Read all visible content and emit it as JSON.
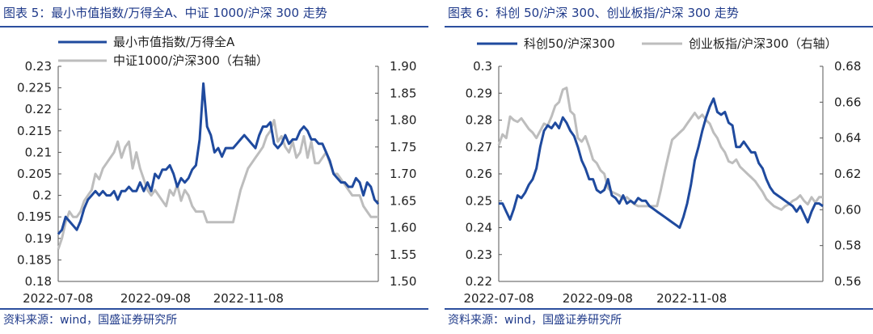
{
  "chart_data": [
    {
      "type": "line",
      "title": "图表 5：最小市值指数/万得全A、中证 1000/沪深 300 走势",
      "source": "资料来源：wind，国盛证券研究所",
      "x_ticks": [
        "2022-07-08",
        "2022-09-08",
        "2022-11-08"
      ],
      "y_left": {
        "min": 0.18,
        "max": 0.23,
        "ticks": [
          "0.18",
          "0.185",
          "0.19",
          "0.195",
          "0.2",
          "0.205",
          "0.21",
          "0.215",
          "0.22",
          "0.225",
          "0.23"
        ]
      },
      "y_right": {
        "min": 1.5,
        "max": 1.9,
        "ticks": [
          "1.50",
          "1.55",
          "1.60",
          "1.65",
          "1.70",
          "1.75",
          "1.80",
          "1.85",
          "1.90"
        ]
      },
      "legend": [
        "最小市值指数/万得全A",
        "中证1000/沪深300（右轴）"
      ],
      "series": [
        {
          "name": "最小市值指数/万得全A",
          "axis": "left",
          "color": "#1f4a9e",
          "values": [
            0.191,
            0.192,
            0.195,
            0.194,
            0.193,
            0.192,
            0.194,
            0.197,
            0.199,
            0.2,
            0.201,
            0.2,
            0.201,
            0.2,
            0.2,
            0.201,
            0.199,
            0.201,
            0.201,
            0.202,
            0.201,
            0.201,
            0.203,
            0.201,
            0.203,
            0.201,
            0.205,
            0.204,
            0.206,
            0.206,
            0.207,
            0.205,
            0.202,
            0.204,
            0.203,
            0.204,
            0.206,
            0.207,
            0.213,
            0.226,
            0.216,
            0.214,
            0.21,
            0.211,
            0.209,
            0.211,
            0.211,
            0.211,
            0.212,
            0.213,
            0.214,
            0.213,
            0.212,
            0.211,
            0.214,
            0.216,
            0.216,
            0.217,
            0.212,
            0.211,
            0.212,
            0.214,
            0.212,
            0.213,
            0.213,
            0.215,
            0.216,
            0.215,
            0.213,
            0.213,
            0.212,
            0.212,
            0.21,
            0.208,
            0.205,
            0.204,
            0.203,
            0.203,
            0.202,
            0.202,
            0.204,
            0.203,
            0.2,
            0.203,
            0.202,
            0.199,
            0.198
          ]
        },
        {
          "name": "中证1000/沪深300（右轴）",
          "axis": "right",
          "color": "#bdbdbd",
          "values": [
            1.56,
            1.58,
            1.61,
            1.63,
            1.62,
            1.62,
            1.63,
            1.65,
            1.66,
            1.67,
            1.7,
            1.69,
            1.71,
            1.72,
            1.73,
            1.74,
            1.76,
            1.73,
            1.75,
            1.76,
            1.71,
            1.74,
            1.71,
            1.69,
            1.67,
            1.66,
            1.67,
            1.66,
            1.65,
            1.64,
            1.67,
            1.66,
            1.68,
            1.65,
            1.67,
            1.66,
            1.64,
            1.63,
            1.63,
            1.63,
            1.61,
            1.61,
            1.61,
            1.61,
            1.61,
            1.61,
            1.61,
            1.61,
            1.64,
            1.67,
            1.69,
            1.71,
            1.72,
            1.73,
            1.74,
            1.75,
            1.77,
            1.78,
            1.8,
            1.76,
            1.77,
            1.75,
            1.74,
            1.76,
            1.73,
            1.74,
            1.77,
            1.73,
            1.76,
            1.72,
            1.72,
            1.73,
            1.74,
            1.72,
            1.7,
            1.7,
            1.69,
            1.68,
            1.67,
            1.66,
            1.66,
            1.66,
            1.64,
            1.63,
            1.62,
            1.62,
            1.62
          ]
        }
      ]
    },
    {
      "type": "line",
      "title": "图表 6：科创 50/沪深 300、创业板指/沪深 300 走势",
      "source": "资料来源：wind，国盛证券研究所",
      "x_ticks": [
        "2022-07-08",
        "2022-09-08",
        "2022-11-08"
      ],
      "y_left": {
        "min": 0.22,
        "max": 0.3,
        "ticks": [
          "0.22",
          "0.23",
          "0.24",
          "0.25",
          "0.26",
          "0.27",
          "0.28",
          "0.29",
          "0.3"
        ]
      },
      "y_right": {
        "min": 0.56,
        "max": 0.68,
        "ticks": [
          "0.56",
          "0.58",
          "0.60",
          "0.62",
          "0.64",
          "0.66",
          "0.68"
        ]
      },
      "legend": [
        "科创50/沪深300",
        "创业板指/沪深300（右轴）"
      ],
      "series": [
        {
          "name": "科创50/沪深300",
          "axis": "left",
          "color": "#1f4a9e",
          "values": [
            0.249,
            0.249,
            0.246,
            0.243,
            0.247,
            0.252,
            0.251,
            0.253,
            0.256,
            0.258,
            0.262,
            0.27,
            0.276,
            0.278,
            0.277,
            0.279,
            0.277,
            0.281,
            0.279,
            0.276,
            0.274,
            0.27,
            0.265,
            0.262,
            0.258,
            0.258,
            0.254,
            0.253,
            0.254,
            0.258,
            0.252,
            0.251,
            0.249,
            0.252,
            0.249,
            0.25,
            0.249,
            0.251,
            0.25,
            0.25,
            0.248,
            0.247,
            0.246,
            0.245,
            0.244,
            0.243,
            0.242,
            0.241,
            0.24,
            0.244,
            0.249,
            0.256,
            0.265,
            0.27,
            0.276,
            0.281,
            0.285,
            0.288,
            0.283,
            0.282,
            0.283,
            0.279,
            0.278,
            0.27,
            0.27,
            0.272,
            0.27,
            0.268,
            0.268,
            0.264,
            0.262,
            0.258,
            0.255,
            0.253,
            0.252,
            0.251,
            0.25,
            0.249,
            0.248,
            0.246,
            0.248,
            0.245,
            0.242,
            0.246,
            0.249,
            0.249,
            0.248
          ]
        },
        {
          "name": "创业板指/沪深300（右轴）",
          "axis": "right",
          "color": "#bdbdbd",
          "values": [
            0.636,
            0.642,
            0.64,
            0.652,
            0.65,
            0.649,
            0.651,
            0.648,
            0.645,
            0.643,
            0.64,
            0.644,
            0.648,
            0.647,
            0.652,
            0.658,
            0.66,
            0.667,
            0.668,
            0.655,
            0.653,
            0.64,
            0.638,
            0.641,
            0.635,
            0.628,
            0.626,
            0.622,
            0.62,
            0.612,
            0.61,
            0.609,
            0.608,
            0.606,
            0.607,
            0.605,
            0.603,
            0.602,
            0.602,
            0.602,
            0.602,
            0.602,
            0.602,
            0.611,
            0.621,
            0.63,
            0.639,
            0.641,
            0.643,
            0.645,
            0.648,
            0.651,
            0.654,
            0.651,
            0.653,
            0.65,
            0.648,
            0.643,
            0.64,
            0.635,
            0.632,
            0.627,
            0.626,
            0.628,
            0.624,
            0.622,
            0.62,
            0.618,
            0.616,
            0.613,
            0.61,
            0.606,
            0.604,
            0.602,
            0.601,
            0.6,
            0.602,
            0.603,
            0.605,
            0.606,
            0.608,
            0.605,
            0.603,
            0.607,
            0.604,
            0.607,
            0.607
          ]
        }
      ]
    }
  ]
}
